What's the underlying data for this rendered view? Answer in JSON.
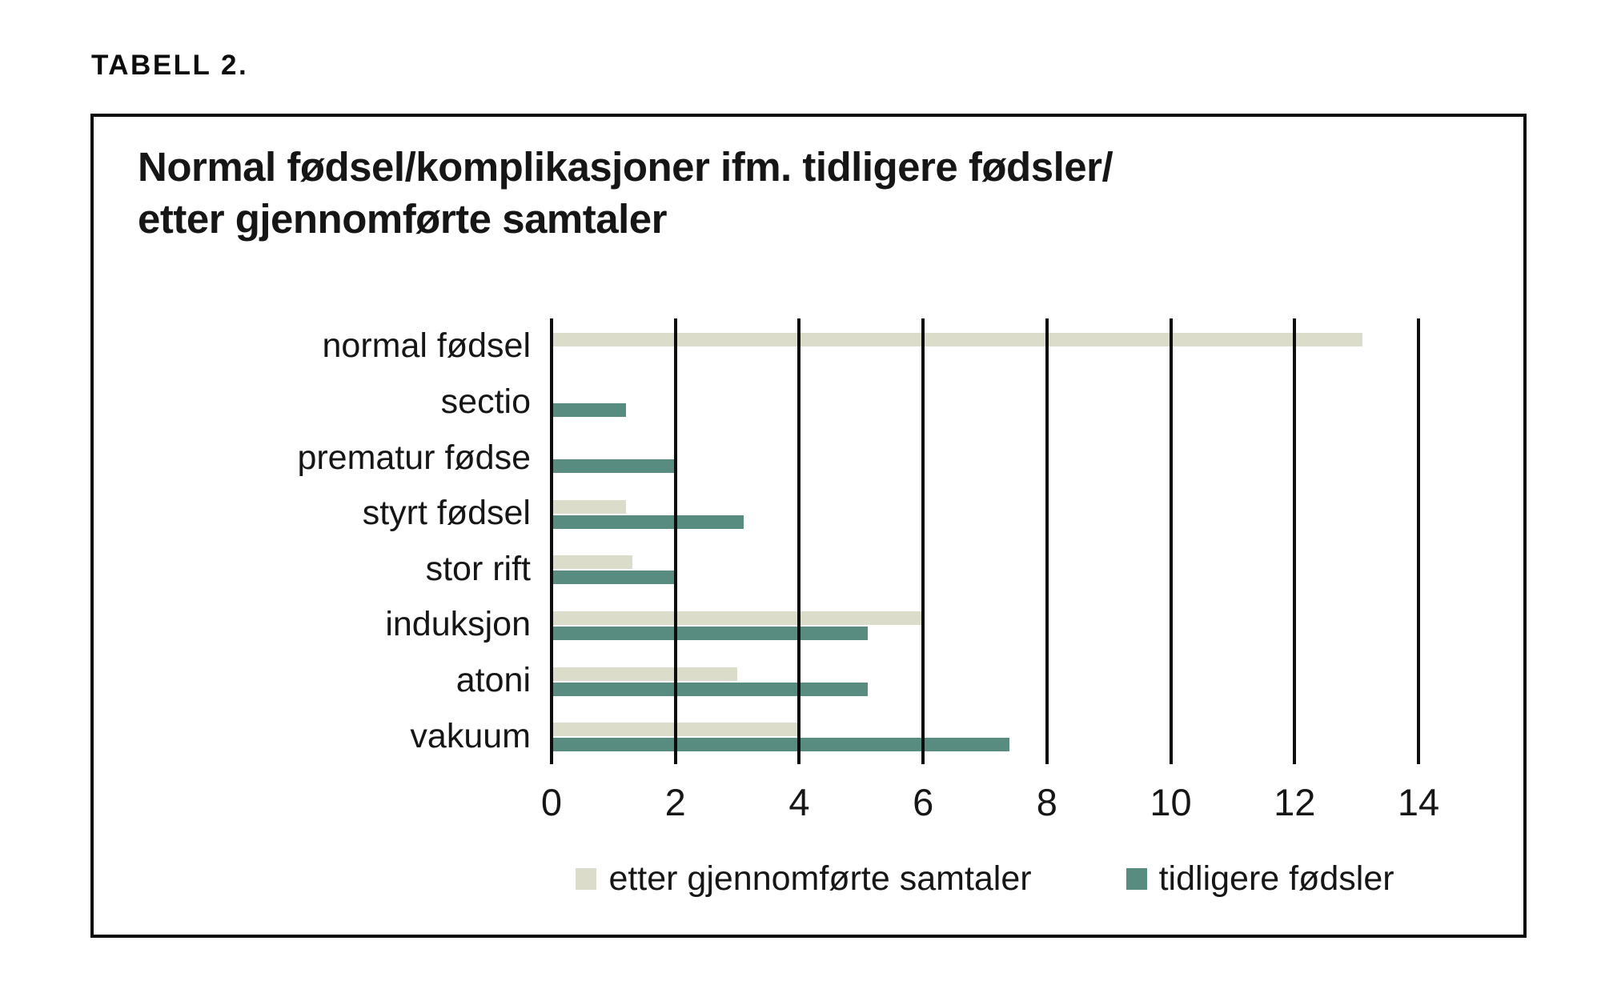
{
  "kicker": "TABELL 2.",
  "colors": {
    "background": "#ffffff",
    "frame": "#0d0d0d",
    "text": "#161616",
    "gridline": "#0d0d0d",
    "series_etter": "#dcdcca",
    "series_tidligere": "#588c80"
  },
  "chart_data": {
    "type": "bar",
    "orientation": "horizontal",
    "title": "Normal fødsel/komplikasjoner ifm. tidligere fødsler/ etter gjennomførte samtaler",
    "title_lines": [
      "Normal fødsel/komplikasjoner ifm. tidligere fødsler/",
      "etter gjennomførte samtaler"
    ],
    "categories": [
      "normal fødsel",
      "sectio",
      "prematur fødse",
      "styrt fødsel",
      "stor rift",
      "induksjon",
      "atoni",
      "vakuum"
    ],
    "series": [
      {
        "name": "etter gjennomførte samtaler",
        "color": "#dcdcca",
        "values": [
          13.1,
          0,
          0,
          1.2,
          1.3,
          6,
          3,
          4
        ]
      },
      {
        "name": "tidligere fødsler",
        "color": "#588c80",
        "values": [
          0,
          1.2,
          2,
          3.1,
          2,
          5.1,
          5.1,
          7.4
        ]
      }
    ],
    "xlim": [
      0,
      14
    ],
    "xticks": [
      0,
      2,
      4,
      6,
      8,
      10,
      12,
      14
    ],
    "xlabel": "",
    "ylabel": "",
    "grid": "vertical, drawn over bars",
    "legend_position": "bottom"
  }
}
